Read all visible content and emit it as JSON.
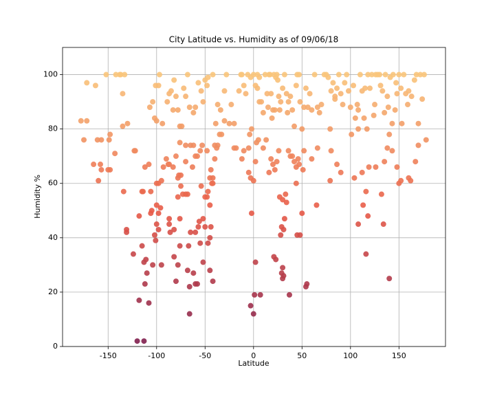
{
  "chart_data": {
    "type": "scatter",
    "title": "City Latitude vs. Humidity as of 09/06/18",
    "xlabel": "Latitude",
    "ylabel": "Humidity %",
    "xlim": [
      -197,
      198
    ],
    "ylim": [
      0,
      110
    ],
    "xticks": [
      -150,
      -100,
      -50,
      0,
      50,
      100,
      150
    ],
    "yticks": [
      0,
      20,
      40,
      60,
      80,
      100
    ],
    "grid": true,
    "colors": [
      "#7d1d4e",
      "#e85a47",
      "#f9c57b"
    ],
    "x": [
      -120,
      -113,
      -118,
      -108,
      -66,
      0,
      -3,
      1,
      7,
      37,
      -112,
      -110,
      -113,
      -111,
      -115,
      -104,
      -101,
      -102,
      -95,
      -82,
      -80,
      -78,
      -76,
      -68,
      -67,
      -66,
      -62,
      -60,
      -58,
      -52,
      -47,
      -45,
      -42,
      -50,
      -45,
      -44,
      -48,
      -55,
      -56,
      2,
      21,
      23,
      29,
      30,
      31,
      30,
      33,
      54,
      55,
      116,
      140,
      -131,
      -131,
      -124,
      -118,
      -114,
      -106,
      -105,
      -100,
      -98,
      -98,
      -100,
      -96,
      -87,
      -87,
      -86,
      -82,
      -76,
      -78,
      -73,
      -70,
      -68,
      -65,
      -60,
      -57,
      -54,
      -52,
      -50,
      -45,
      -47,
      -42,
      -42,
      -44,
      -38,
      -40,
      -2,
      -5,
      -3,
      0,
      2,
      28,
      29,
      31,
      32,
      30,
      34,
      27,
      48,
      45,
      50,
      51,
      44,
      46,
      65,
      108,
      113,
      116,
      118,
      132,
      134,
      150,
      152,
      162,
      167,
      -148,
      -160,
      -157,
      -158,
      -134,
      -122,
      -123,
      -112,
      -108,
      -106,
      -100,
      -98,
      -95,
      -93,
      -90,
      -87,
      -83,
      -80,
      -78,
      -77,
      -75,
      -75,
      -70,
      -70,
      -65,
      -63,
      -60,
      -58,
      -55,
      -53,
      -48,
      -45,
      -43,
      -40,
      -37,
      -33,
      -20,
      -12,
      -10,
      -5,
      -4,
      3,
      5,
      10,
      13,
      16,
      18,
      20,
      22,
      24,
      26,
      36,
      38,
      40,
      42,
      44,
      47,
      52,
      60,
      66,
      80,
      79,
      86,
      90,
      104,
      108,
      112,
      119,
      126,
      135,
      138,
      143,
      148,
      160,
      170,
      -178,
      -175,
      -172,
      -172,
      -163,
      -161,
      -157,
      -152,
      -149,
      -148,
      -142,
      -138,
      -137,
      -135,
      -135,
      -133,
      -130,
      -107,
      -104,
      -102,
      -100,
      -101,
      -98,
      -97,
      -94,
      -89,
      -87,
      -85,
      -83,
      -82,
      -80,
      -78,
      -76,
      -74,
      -72,
      -70,
      -68,
      -66,
      -62,
      -60,
      -57,
      -54,
      -52,
      -50,
      -48,
      -47,
      -42,
      -39,
      -37,
      -34,
      -30,
      -28,
      -23,
      -20,
      -18,
      -15,
      -13,
      -12,
      -10,
      -8,
      -6,
      -3,
      -2,
      0,
      2,
      4,
      6,
      8,
      10,
      12,
      14,
      15,
      16,
      17,
      18,
      19,
      20,
      21,
      22,
      23,
      24,
      25,
      26,
      27,
      28,
      30,
      32,
      34,
      35,
      36,
      38,
      40,
      42,
      44,
      45,
      47,
      48,
      50,
      52,
      54,
      56,
      58,
      60,
      63,
      66,
      68,
      70,
      73,
      75,
      77,
      79,
      80,
      82,
      84,
      86,
      88,
      90,
      92,
      94,
      96,
      98,
      100,
      101,
      103,
      105,
      107,
      108,
      110,
      112,
      114,
      115,
      117,
      118,
      120,
      122,
      124,
      125,
      126,
      128,
      130,
      131,
      133,
      135,
      136,
      138,
      139,
      140,
      141,
      143,
      144,
      146,
      147,
      148,
      150,
      152,
      153,
      155,
      157,
      159,
      160,
      163,
      166,
      168,
      170,
      172,
      174,
      176,
      178,
      -35,
      -62,
      -76,
      -88,
      -30,
      -25,
      4,
      6,
      84,
      -165,
      -115,
      -143,
      -150
    ],
    "values": [
      2,
      2,
      17,
      16,
      12,
      12,
      15,
      19,
      19,
      19,
      23,
      27,
      31,
      32,
      37,
      30,
      39,
      41,
      30,
      33,
      24,
      30,
      37,
      28,
      37,
      22,
      27,
      23,
      23,
      31,
      38,
      28,
      24,
      44,
      40,
      44,
      55,
      38,
      46,
      31,
      33,
      32,
      27,
      25,
      26,
      29,
      56,
      22,
      23,
      34,
      25,
      42,
      43,
      34,
      48,
      57,
      49,
      50,
      45,
      49,
      43,
      52,
      51,
      47,
      45,
      42,
      43,
      47,
      55,
      56,
      56,
      56,
      42,
      42,
      44,
      59,
      47,
      55,
      52,
      57,
      62,
      60,
      65,
      73,
      74,
      49,
      64,
      62,
      61,
      68,
      41,
      44,
      43,
      47,
      54,
      53,
      55,
      41,
      41,
      49,
      65,
      60,
      69,
      52,
      45,
      52,
      57,
      48,
      56,
      45,
      60,
      61,
      61,
      68,
      65,
      61,
      65,
      67,
      57,
      72,
      72,
      66,
      67,
      57,
      60,
      60,
      61,
      66,
      69,
      67,
      66,
      70,
      62,
      63,
      59,
      63,
      68,
      74,
      74,
      66,
      70,
      70,
      72,
      74,
      72,
      62,
      60,
      69,
      74,
      78,
      82,
      69,
      72,
      73,
      78,
      75,
      76,
      73,
      76,
      64,
      69,
      67,
      65,
      68,
      72,
      72,
      70,
      70,
      68,
      66,
      67,
      72,
      69,
      73,
      72,
      61,
      67,
      64,
      62,
      80,
      64,
      66,
      66,
      68,
      73,
      72,
      66,
      62,
      74,
      83,
      76,
      83,
      97,
      96,
      76,
      76,
      100,
      76,
      78,
      100,
      100,
      100,
      81,
      93,
      100,
      82,
      88,
      90,
      84,
      83,
      96,
      96,
      100,
      82,
      90,
      93,
      94,
      87,
      98,
      92,
      87,
      81,
      81,
      95,
      92,
      100,
      88,
      86,
      88,
      97,
      94,
      90,
      98,
      96,
      99,
      100,
      82,
      89,
      87,
      94,
      100,
      89,
      73,
      73,
      94,
      100,
      100,
      96,
      93,
      100,
      99,
      80,
      100,
      96,
      100,
      99,
      90,
      86,
      100,
      93,
      88,
      100,
      100,
      93,
      84,
      87,
      100,
      87,
      99,
      100,
      98,
      92,
      87,
      90,
      95,
      100,
      93,
      86,
      90,
      92,
      87,
      81,
      96,
      100,
      100,
      90,
      80,
      88,
      95,
      88,
      93,
      87,
      100,
      88,
      86,
      89,
      100,
      100,
      99,
      80,
      94,
      97,
      91,
      95,
      100,
      93,
      89,
      97,
      100,
      94,
      88,
      78,
      96,
      84,
      89,
      87,
      100,
      94,
      84,
      95,
      80,
      100,
      95,
      100,
      85,
      89,
      100,
      100,
      100,
      96,
      94,
      86,
      100,
      92,
      88,
      78,
      99,
      82,
      100,
      87,
      97,
      93,
      100,
      95,
      82,
      100,
      93,
      89,
      94,
      92,
      98,
      100,
      82,
      100,
      91,
      100,
      76,
      78,
      74,
      75,
      67,
      83,
      82,
      95,
      90,
      92,
      67,
      57,
      71,
      65
    ]
  }
}
